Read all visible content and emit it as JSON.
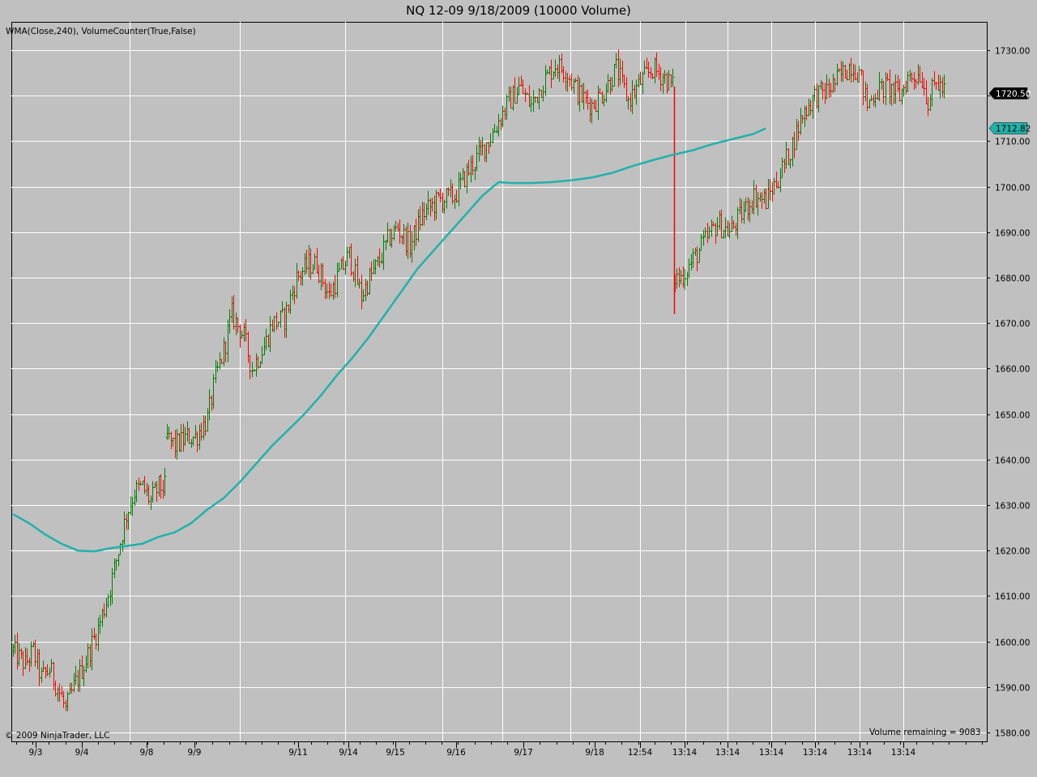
{
  "title": "NQ 12-09  9/18/2009 (10000 Volume)",
  "indicator_label": "WMA(Close,240), VolumeCounter(True,False)",
  "copyright": "© 2009 NinjaTrader, LLC",
  "volume_remaining": "Volume remaining = 9083",
  "colors": {
    "background": "#c0c0c0",
    "up_bar": "#008000",
    "down_bar": "#ff0000",
    "wma": "#20b2aa",
    "grid": "#ffffff",
    "price_badge_bg": "#000000",
    "wma_badge_bg": "#20b2aa"
  },
  "chart_data": {
    "type": "ohlc",
    "ylim": [
      1580,
      1735
    ],
    "y_ticks": [
      "1730.00",
      "1720.00",
      "1710.00",
      "1700.00",
      "1690.00",
      "1680.00",
      "1670.00",
      "1660.00",
      "1650.00",
      "1640.00",
      "1630.00",
      "1620.00",
      "1610.00",
      "1600.00",
      "1590.00",
      "1580.00"
    ],
    "x_ticks": [
      "9/3",
      "9/4",
      "9/8",
      "9/9",
      "9/11",
      "9/14",
      "9/15",
      "9/16",
      "9/17",
      "9/18",
      "12:54",
      "13:14",
      "13:14",
      "13:14",
      "13:14",
      "13:14",
      "13:14"
    ],
    "last_price": "1720.50",
    "wma_last": "1712.82",
    "series": [
      {
        "name": "WMA(Close,240)",
        "type": "line",
        "points": [
          [
            0,
            1628
          ],
          [
            8,
            1626
          ],
          [
            16,
            1623.5
          ],
          [
            24,
            1621.5
          ],
          [
            32,
            1620
          ],
          [
            40,
            1619.8
          ],
          [
            48,
            1620.5
          ],
          [
            56,
            1621
          ],
          [
            64,
            1621.5
          ],
          [
            72,
            1623
          ],
          [
            80,
            1624
          ],
          [
            88,
            1626
          ],
          [
            96,
            1629
          ],
          [
            104,
            1631.5
          ],
          [
            112,
            1635
          ],
          [
            120,
            1639
          ],
          [
            128,
            1643
          ],
          [
            136,
            1646.5
          ],
          [
            144,
            1650
          ],
          [
            152,
            1654
          ],
          [
            160,
            1658.5
          ],
          [
            168,
            1662.5
          ],
          [
            176,
            1667
          ],
          [
            184,
            1672
          ],
          [
            192,
            1677
          ],
          [
            200,
            1682
          ],
          [
            208,
            1686
          ],
          [
            216,
            1690
          ],
          [
            224,
            1694
          ],
          [
            232,
            1698
          ],
          [
            240,
            1701
          ],
          [
            246,
            1700.8
          ],
          [
            256,
            1700.8
          ],
          [
            266,
            1701
          ],
          [
            276,
            1701.4
          ],
          [
            286,
            1702
          ],
          [
            296,
            1703
          ],
          [
            306,
            1704.5
          ],
          [
            316,
            1705.8
          ],
          [
            326,
            1707
          ],
          [
            336,
            1708
          ],
          [
            346,
            1709.4
          ],
          [
            356,
            1710.5
          ],
          [
            366,
            1711.6
          ],
          [
            372,
            1712.82
          ]
        ]
      },
      {
        "name": "OHLC",
        "type": "ohlc",
        "anchors": [
          [
            0,
            1598
          ],
          [
            6,
            1595
          ],
          [
            10,
            1598
          ],
          [
            14,
            1592
          ],
          [
            18,
            1594
          ],
          [
            22,
            1590
          ],
          [
            26,
            1585
          ],
          [
            30,
            1590
          ],
          [
            36,
            1596
          ],
          [
            42,
            1603
          ],
          [
            48,
            1612
          ],
          [
            52,
            1620
          ],
          [
            56,
            1628
          ],
          [
            60,
            1633
          ],
          [
            64,
            1634
          ],
          [
            68,
            1631
          ],
          [
            72,
            1634
          ],
          [
            75,
            1634
          ],
          [
            76,
            1645
          ],
          [
            80,
            1643
          ],
          [
            86,
            1645
          ],
          [
            90,
            1645
          ],
          [
            96,
            1649
          ],
          [
            100,
            1658
          ],
          [
            104,
            1664
          ],
          [
            108,
            1672
          ],
          [
            114,
            1667
          ],
          [
            118,
            1660
          ],
          [
            124,
            1665
          ],
          [
            128,
            1670
          ],
          [
            134,
            1671
          ],
          [
            140,
            1680
          ],
          [
            146,
            1683
          ],
          [
            150,
            1683
          ],
          [
            156,
            1676
          ],
          [
            160,
            1680
          ],
          [
            166,
            1685
          ],
          [
            172,
            1676
          ],
          [
            176,
            1680
          ],
          [
            180,
            1683
          ],
          [
            186,
            1689
          ],
          [
            190,
            1691
          ],
          [
            196,
            1687
          ],
          [
            202,
            1694
          ],
          [
            210,
            1697
          ],
          [
            218,
            1698
          ],
          [
            224,
            1703
          ],
          [
            230,
            1707
          ],
          [
            236,
            1711
          ],
          [
            244,
            1718
          ],
          [
            250,
            1722
          ],
          [
            256,
            1718
          ],
          [
            262,
            1723
          ],
          [
            268,
            1727
          ],
          [
            274,
            1725
          ],
          [
            280,
            1720
          ],
          [
            286,
            1718
          ],
          [
            292,
            1721
          ],
          [
            298,
            1726
          ],
          [
            304,
            1719
          ],
          [
            310,
            1723
          ],
          [
            316,
            1726
          ],
          [
            322,
            1724
          ],
          [
            326,
            1722
          ],
          [
            327,
            1680
          ],
          [
            330,
            1680
          ],
          [
            336,
            1684
          ],
          [
            342,
            1688
          ],
          [
            348,
            1692
          ],
          [
            354,
            1690
          ],
          [
            360,
            1694
          ],
          [
            366,
            1698
          ],
          [
            372,
            1697
          ],
          [
            378,
            1702
          ],
          [
            384,
            1708
          ],
          [
            390,
            1716
          ],
          [
            396,
            1720
          ],
          [
            402,
            1721
          ],
          [
            408,
            1724
          ],
          [
            414,
            1727
          ],
          [
            418,
            1725
          ],
          [
            422,
            1718
          ],
          [
            426,
            1721
          ],
          [
            432,
            1722
          ],
          [
            438,
            1720
          ],
          [
            442,
            1724
          ],
          [
            448,
            1725
          ],
          [
            452,
            1719
          ],
          [
            456,
            1723
          ],
          [
            460,
            1721
          ]
        ],
        "gap_after": [
          75,
          326
        ]
      }
    ]
  }
}
